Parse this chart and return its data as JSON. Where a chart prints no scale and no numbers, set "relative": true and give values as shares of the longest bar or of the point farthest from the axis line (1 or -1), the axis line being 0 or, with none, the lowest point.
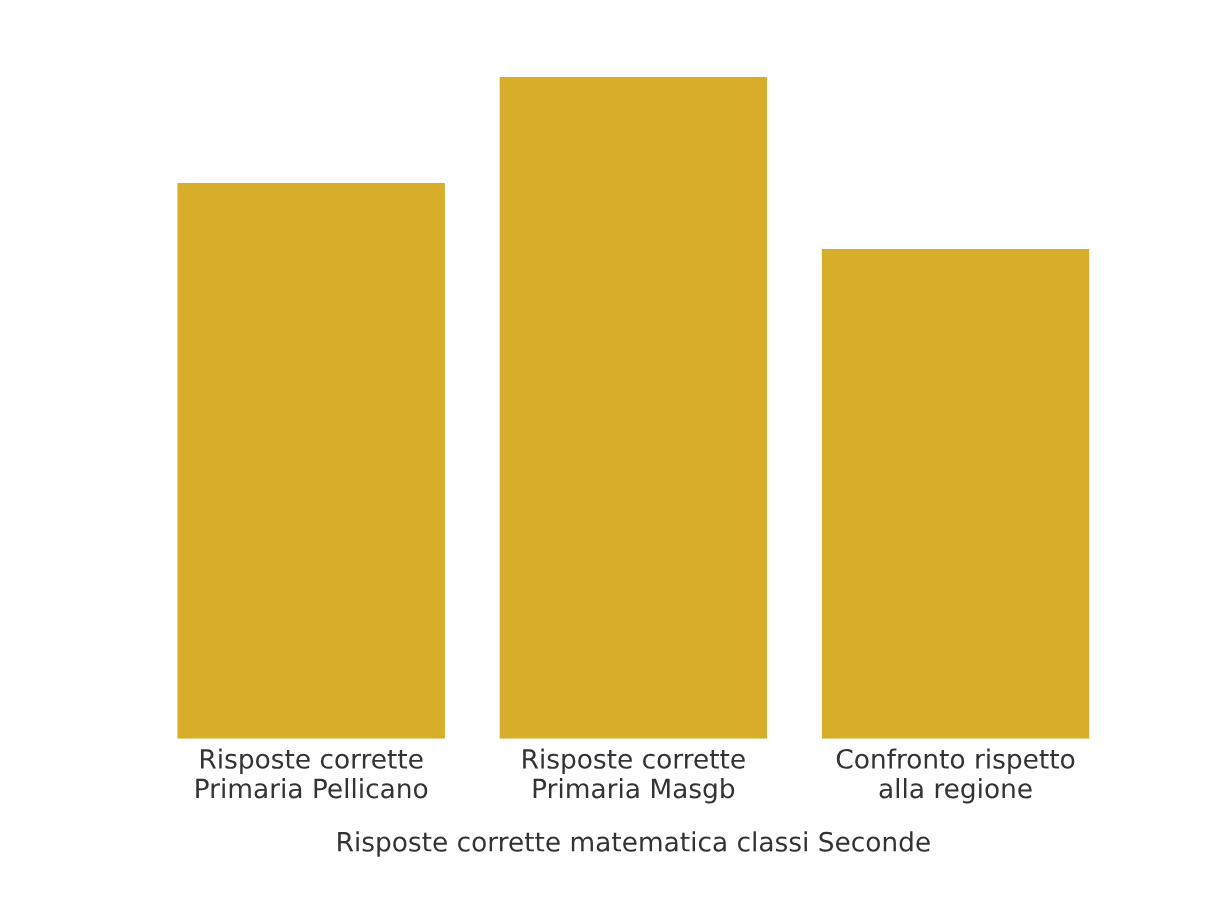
{
  "chart_data": {
    "type": "bar",
    "relative": true,
    "xlabel": "Risposte corrette matematica classi Seconde",
    "categories": [
      "Risposte corrette\nPrimaria Pellicano",
      "Risposte corrette\nPrimaria Masgb",
      "Confronto rispetto\nalla regione"
    ],
    "values": [
      0.84,
      1,
      0.74
    ],
    "color": "#d6ae2a",
    "grid": false,
    "legend": false
  }
}
